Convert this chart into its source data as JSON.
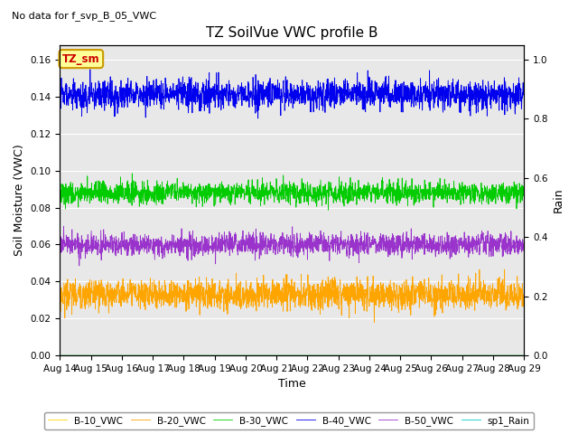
{
  "title": "TZ SoilVue VWC profile B",
  "no_data_label": "No data for f_svp_B_05_VWC",
  "xlabel": "Time",
  "ylabel_left": "Soil Moisture (VWC)",
  "ylabel_right": "Rain",
  "ylim_left": [
    0.0,
    0.168
  ],
  "ylim_right": [
    0.0,
    1.05
  ],
  "yticks_left": [
    0.0,
    0.02,
    0.04,
    0.06,
    0.08,
    0.1,
    0.12,
    0.14,
    0.16
  ],
  "yticks_right": [
    0.0,
    0.2,
    0.4,
    0.6,
    0.8,
    1.0
  ],
  "xtick_labels": [
    "Aug 14",
    "Aug 15",
    "Aug 16",
    "Aug 17",
    "Aug 18",
    "Aug 19",
    "Aug 20",
    "Aug 21",
    "Aug 22",
    "Aug 23",
    "Aug 24",
    "Aug 25",
    "Aug 26",
    "Aug 27",
    "Aug 28",
    "Aug 29"
  ],
  "series": {
    "B10": {
      "label": "B-10_VWC",
      "color": "#FFD700",
      "mean": 0.0,
      "noise": 0.0001
    },
    "B20": {
      "label": "B-20_VWC",
      "color": "#FFA500",
      "mean": 0.033,
      "noise": 0.004
    },
    "B30": {
      "label": "B-30_VWC",
      "color": "#00CC00",
      "mean": 0.088,
      "noise": 0.003
    },
    "B40": {
      "label": "B-40_VWC",
      "color": "#0000EE",
      "mean": 0.141,
      "noise": 0.004
    },
    "B50": {
      "label": "B-50_VWC",
      "color": "#9933CC",
      "mean": 0.06,
      "noise": 0.003
    },
    "Rain": {
      "label": "sp1_Rain",
      "color": "#00CCCC",
      "mean": 0.0,
      "noise": 0.0
    }
  },
  "n_points": 2000,
  "background_color": "#E8E8E8",
  "fig_background": "#FFFFFF",
  "annotation_text": "TZ_sm",
  "annotation_color": "#CC0000",
  "annotation_bg": "#FFFF99",
  "annotation_edge": "#CC9900"
}
